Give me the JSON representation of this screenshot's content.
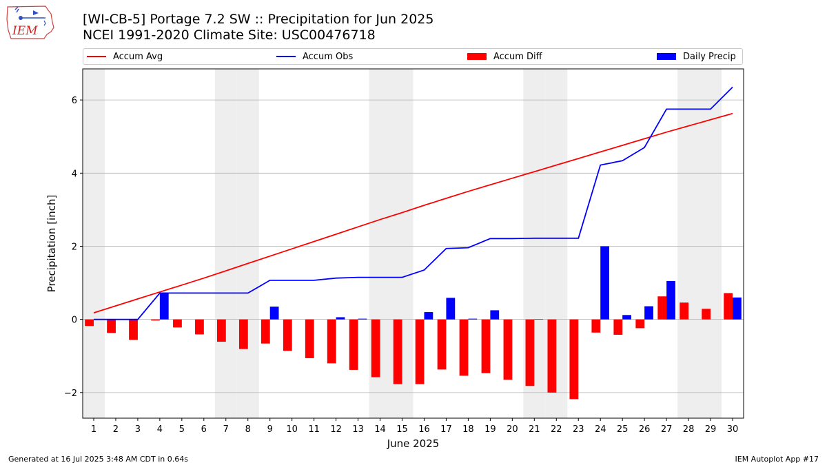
{
  "header": {
    "title_line1": "[WI-CB-5] Portage 7.2 SW :: Precipitation for Jun 2025",
    "title_line2": "NCEI 1991-2020 Climate Site: USC00476718",
    "logo_text": "IEM"
  },
  "footer": {
    "generated": "Generated at 16 Jul 2025 3:48 AM CDT in 0.64s",
    "app": "IEM Autoplot App #17"
  },
  "colors": {
    "accum_avg": "#ff0000",
    "accum_obs": "#0000ff",
    "accum_diff": "#ff0000",
    "daily_precip": "#0000ff",
    "weekend_band": "#eeeeee",
    "grid": "#b0b0b0"
  },
  "legend": [
    {
      "key": "accum_avg",
      "label": "Accum Avg",
      "kind": "line"
    },
    {
      "key": "accum_obs",
      "label": "Accum Obs",
      "kind": "line"
    },
    {
      "key": "accum_diff",
      "label": "Accum Diff",
      "kind": "bar"
    },
    {
      "key": "daily_precip",
      "label": "Daily Precip",
      "kind": "bar"
    }
  ],
  "chart_data": {
    "type": "bar",
    "xlabel": "June 2025",
    "ylabel": "Precipitation [inch]",
    "xlim": [
      0.5,
      30.5
    ],
    "ylim": [
      -2.7,
      6.85
    ],
    "yticks": [
      -2,
      0,
      2,
      4,
      6
    ],
    "grid": "horizontal",
    "legend_placement": "top",
    "days": [
      1,
      2,
      3,
      4,
      5,
      6,
      7,
      8,
      9,
      10,
      11,
      12,
      13,
      14,
      15,
      16,
      17,
      18,
      19,
      20,
      21,
      22,
      23,
      24,
      25,
      26,
      27,
      28,
      29,
      30
    ],
    "weekend_days": [
      1,
      7,
      8,
      14,
      15,
      21,
      22,
      28,
      29
    ],
    "series": [
      {
        "name": "Accum Avg",
        "key": "accum_avg",
        "values": [
          0.18,
          0.37,
          0.56,
          0.75,
          0.94,
          1.13,
          1.33,
          1.53,
          1.73,
          1.93,
          2.13,
          2.33,
          2.53,
          2.73,
          2.92,
          3.12,
          3.31,
          3.5,
          3.68,
          3.86,
          4.04,
          4.22,
          4.4,
          4.58,
          4.76,
          4.94,
          5.12,
          5.29,
          5.46,
          5.63
        ]
      },
      {
        "name": "Accum Obs",
        "key": "accum_obs",
        "values": [
          0.0,
          0.0,
          0.0,
          0.72,
          0.72,
          0.72,
          0.72,
          0.72,
          1.07,
          1.07,
          1.07,
          1.13,
          1.15,
          1.15,
          1.15,
          1.35,
          1.94,
          1.96,
          2.21,
          2.21,
          2.22,
          2.22,
          2.22,
          4.22,
          4.34,
          4.7,
          5.75,
          5.75,
          5.75,
          6.35
        ]
      },
      {
        "name": "Accum Diff",
        "key": "accum_diff",
        "values": [
          -0.18,
          -0.37,
          -0.56,
          -0.03,
          -0.22,
          -0.41,
          -0.61,
          -0.81,
          -0.66,
          -0.86,
          -1.06,
          -1.2,
          -1.38,
          -1.58,
          -1.77,
          -1.77,
          -1.37,
          -1.54,
          -1.47,
          -1.65,
          -1.82,
          -2.0,
          -2.18,
          -0.36,
          -0.42,
          -0.24,
          0.63,
          0.46,
          0.29,
          0.72
        ]
      },
      {
        "name": "Daily Precip",
        "key": "daily_precip",
        "values": [
          0,
          0,
          0,
          0.72,
          0,
          0,
          0,
          0,
          0.35,
          0,
          0,
          0.06,
          0.02,
          0,
          0,
          0.2,
          0.59,
          0.02,
          0.25,
          0,
          0.01,
          0,
          0,
          2.0,
          0.12,
          0.36,
          1.05,
          0,
          0,
          0.6
        ]
      }
    ]
  }
}
